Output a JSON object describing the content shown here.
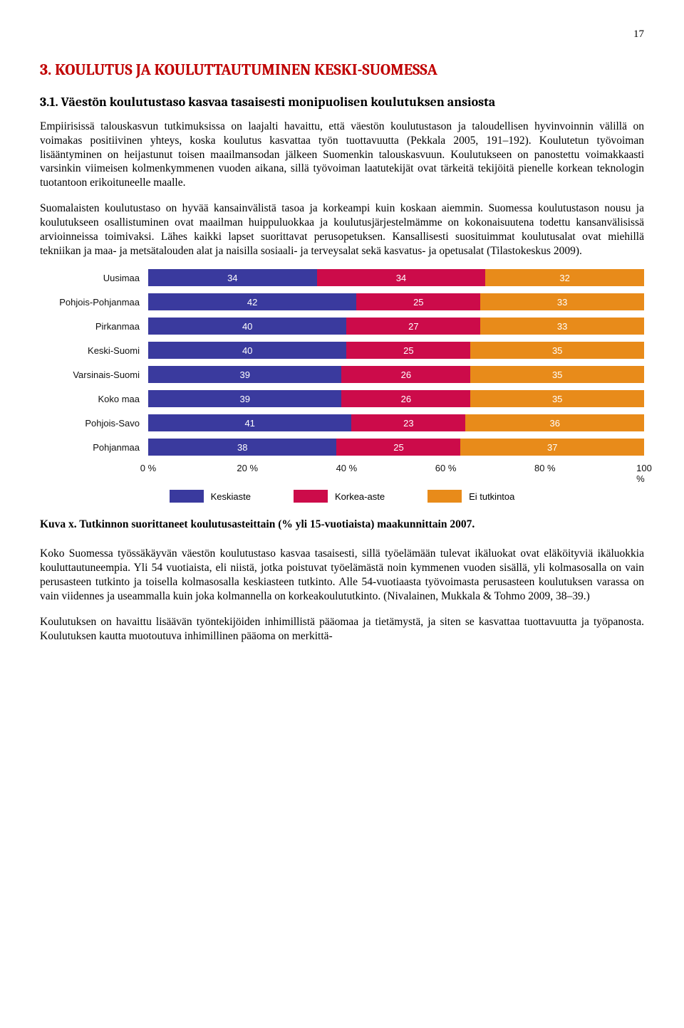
{
  "page_number": "17",
  "heading": "3. KOULUTUS JA KOULUTTAUTUMINEN KESKI-SUOMESSA",
  "subheading": "3.1. Väestön koulutustaso kasvaa tasaisesti monipuolisen koulutuksen ansiosta",
  "paragraphs": {
    "p1": "Empiirisissä talouskasvun tutkimuksissa on laajalti havaittu, että väestön koulutustason ja taloudellisen hyvinvoinnin välillä on voimakas positiivinen yhteys, koska koulutus kasvattaa työn tuottavuutta (Pekkala 2005, 191–192). Koulutetun työvoiman lisääntyminen on heijastunut toisen maailmansodan jälkeen Suomenkin talouskasvuun. Koulutukseen on panostettu voimakkaasti varsinkin viimeisen kolmenkymmenen vuoden aikana, sillä työvoiman laatutekijät ovat tärkeitä tekijöitä pienelle korkean teknologin tuotantoon erikoituneelle maalle.",
    "p2": "Suomalaisten koulutustaso on hyvää kansainvälistä tasoa ja korkeampi kuin koskaan aiemmin. Suomessa koulutustason nousu ja koulutukseen osallistuminen ovat maailman huippuluokkaa ja koulutusjärjestelmämme on kokonaisuutena todettu kansanvälisissä arvioinneissa toimivaksi. Lähes kaikki lapset suorittavat perusopetuksen. Kansallisesti suosituimmat koulutusalat ovat miehillä tekniikan ja maa- ja metsätalouden alat ja naisilla sosiaali- ja terveysalat sekä kasvatus- ja opetusalat (Tilastokeskus 2009).",
    "p3": "Koko Suomessa työssäkäyvän väestön koulutustaso kasvaa tasaisesti, sillä työelämään tulevat ikäluokat ovat eläköityviä ikäluokkia kouluttautuneempia. Yli 54 vuotiaista, eli niistä, jotka poistuvat työelämästä noin kymmenen vuoden sisällä, yli kolmasosalla on vain perusasteen tutkinto ja toisella kolmasosalla keskiasteen tutkinto. Alle 54-vuotiaasta työvoimasta perusasteen koulutuksen varassa on vain viidennes ja useammalla kuin joka kolmannella on korkeakoulututkinto. (Nivalainen, Mukkala & Tohmo 2009, 38–39.)",
    "p4": "Koulutuksen on havaittu lisäävän työntekijöiden inhimillistä pääomaa ja tietämystä, ja siten se kasvattaa tuottavuutta ja työpanosta. Koulutuksen kautta muotoutuva inhimillinen pääoma on merkittä-"
  },
  "caption_label": "Kuva x. ",
  "caption_text": "Tutkinnon suorittaneet koulutusasteittain (% yli 15-vuotiaista) maakunnittain 2007.",
  "chart": {
    "type": "stacked-bar-horizontal",
    "colors": {
      "keskiaste": "#3a3a9e",
      "korkea": "#cc0b4a",
      "ei": "#e88b1a",
      "text": "#ffffff",
      "axis": "#111111"
    },
    "categories": [
      {
        "label": "Uusimaa",
        "values": [
          34,
          34,
          32
        ]
      },
      {
        "label": "Pohjois-Pohjanmaa",
        "values": [
          42,
          25,
          33
        ]
      },
      {
        "label": "Pirkanmaa",
        "values": [
          40,
          27,
          33
        ]
      },
      {
        "label": "Keski-Suomi",
        "values": [
          40,
          25,
          35
        ]
      },
      {
        "label": "Varsinais-Suomi",
        "values": [
          39,
          26,
          35
        ]
      },
      {
        "label": "Koko maa",
        "values": [
          39,
          26,
          35
        ]
      },
      {
        "label": "Pohjois-Savo",
        "values": [
          41,
          23,
          36
        ]
      },
      {
        "label": "Pohjanmaa",
        "values": [
          38,
          25,
          37
        ]
      }
    ],
    "axis_ticks": [
      "0 %",
      "20 %",
      "40 %",
      "60 %",
      "80 %",
      "100 %"
    ],
    "legend": [
      {
        "label": "Keskiaste",
        "color": "#3a3a9e"
      },
      {
        "label": "Korkea-aste",
        "color": "#cc0b4a"
      },
      {
        "label": "Ei tutkintoa",
        "color": "#e88b1a"
      }
    ]
  }
}
